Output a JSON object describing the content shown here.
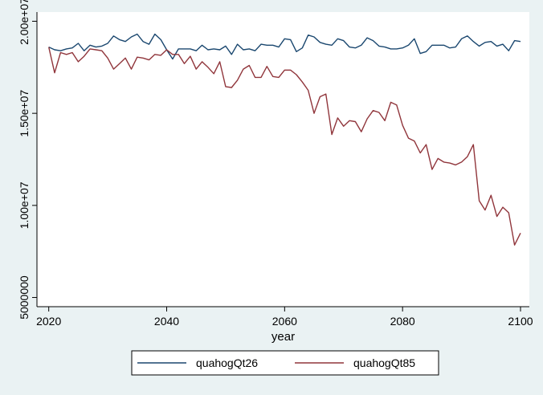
{
  "chart_data": {
    "type": "line",
    "title": "",
    "xlabel": "year",
    "ylabel": "",
    "xlim": [
      2020,
      2100
    ],
    "ylim": [
      5000000,
      20000000
    ],
    "x_ticks": [
      2020,
      2040,
      2060,
      2080,
      2100
    ],
    "x_tick_labels": [
      "2020",
      "2040",
      "2060",
      "2080",
      "2100"
    ],
    "y_ticks": [
      5000000,
      10000000,
      15000000,
      20000000
    ],
    "y_tick_labels": [
      "5000000",
      "1.00e+07",
      "1.50e+07",
      "2.00e+07"
    ],
    "grid": false,
    "legend": "bottom",
    "colors": {
      "plot_bg": "#ffffff",
      "outer_bg": "#eaf2f3"
    },
    "x": [
      2020,
      2021,
      2022,
      2023,
      2024,
      2025,
      2026,
      2027,
      2028,
      2029,
      2030,
      2031,
      2032,
      2033,
      2034,
      2035,
      2036,
      2037,
      2038,
      2039,
      2040,
      2041,
      2042,
      2043,
      2044,
      2045,
      2046,
      2047,
      2048,
      2049,
      2050,
      2051,
      2052,
      2053,
      2054,
      2055,
      2056,
      2057,
      2058,
      2059,
      2060,
      2061,
      2062,
      2063,
      2064,
      2065,
      2066,
      2067,
      2068,
      2069,
      2070,
      2071,
      2072,
      2073,
      2074,
      2075,
      2076,
      2077,
      2078,
      2079,
      2080,
      2081,
      2082,
      2083,
      2084,
      2085,
      2086,
      2087,
      2088,
      2089,
      2090,
      2091,
      2092,
      2093,
      2094,
      2095,
      2096,
      2097,
      2098,
      2099,
      2100
    ],
    "series": [
      {
        "name": "quahogQt26",
        "color": "#1a476f",
        "values": [
          18600000,
          18450000,
          18400000,
          18500000,
          18550000,
          18800000,
          18400000,
          18700000,
          18600000,
          18650000,
          18800000,
          19200000,
          19000000,
          18900000,
          19150000,
          19300000,
          18900000,
          18750000,
          19300000,
          19000000,
          18450000,
          17950000,
          18500000,
          18500000,
          18500000,
          18400000,
          18700000,
          18450000,
          18500000,
          18450000,
          18650000,
          18200000,
          18750000,
          18450000,
          18500000,
          18400000,
          18750000,
          18700000,
          18700000,
          18600000,
          19050000,
          19000000,
          18350000,
          18550000,
          19250000,
          19150000,
          18850000,
          18750000,
          18700000,
          19050000,
          18950000,
          18600000,
          18550000,
          18700000,
          19100000,
          18950000,
          18650000,
          18600000,
          18500000,
          18500000,
          18550000,
          18700000,
          19050000,
          18250000,
          18350000,
          18700000,
          18700000,
          18700000,
          18550000,
          18600000,
          19050000,
          19200000,
          18900000,
          18650000,
          18850000,
          18900000,
          18650000,
          18750000,
          18400000,
          18950000,
          18900000
        ]
      },
      {
        "name": "quahogQt85",
        "color": "#90353b",
        "values": [
          18600000,
          17200000,
          18300000,
          18200000,
          18300000,
          17800000,
          18100000,
          18500000,
          18450000,
          18400000,
          18000000,
          17400000,
          17700000,
          18000000,
          17400000,
          18050000,
          18000000,
          17900000,
          18200000,
          18150000,
          18450000,
          18200000,
          18200000,
          17700000,
          18100000,
          17400000,
          17800000,
          17500000,
          17150000,
          17800000,
          16450000,
          16400000,
          16800000,
          17400000,
          17600000,
          16950000,
          16950000,
          17550000,
          17000000,
          16950000,
          17350000,
          17350000,
          17100000,
          16700000,
          16250000,
          15000000,
          15900000,
          16050000,
          13850000,
          14750000,
          14300000,
          14600000,
          14550000,
          14000000,
          14700000,
          15150000,
          15050000,
          14600000,
          15600000,
          15450000,
          14350000,
          13650000,
          13500000,
          12850000,
          13300000,
          11950000,
          12550000,
          12350000,
          12300000,
          12200000,
          12350000,
          12650000,
          13300000,
          10250000,
          9750000,
          10550000,
          9400000,
          9900000,
          9600000,
          7850000,
          8500000
        ]
      }
    ]
  }
}
